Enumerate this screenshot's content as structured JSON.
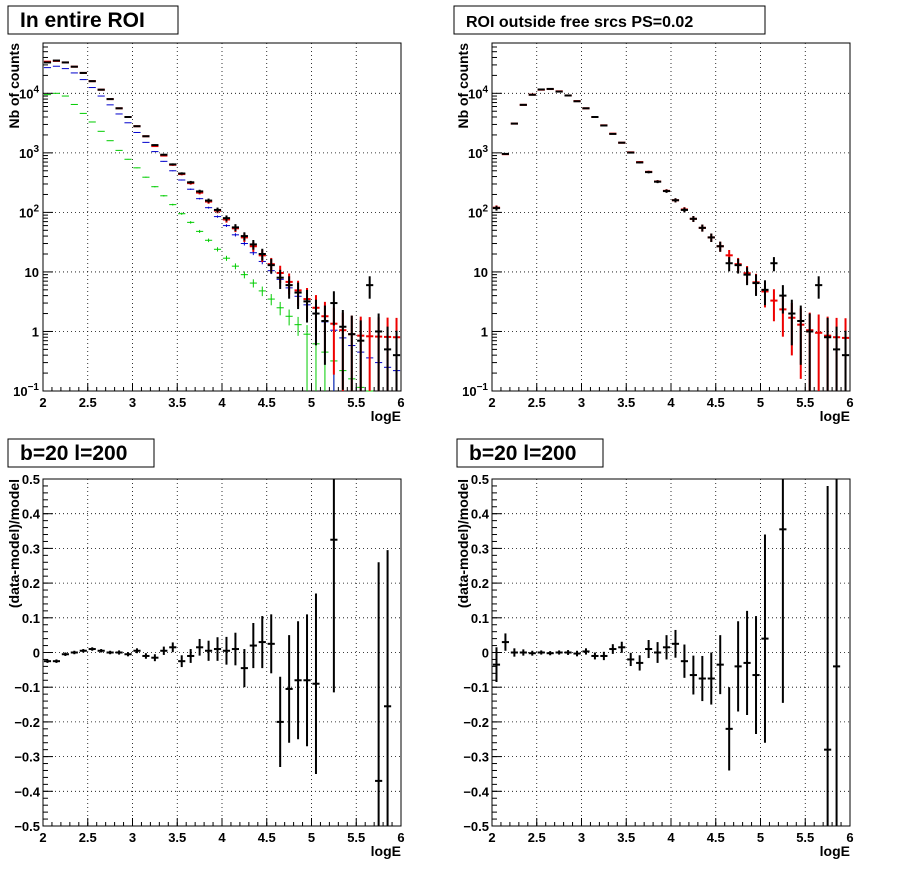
{
  "chart_data": [
    {
      "type": "scatter",
      "title": "In entire ROI",
      "xlabel": "logE",
      "ylabel": "Nb of counts",
      "yscale": "log",
      "xlim": [
        2,
        6
      ],
      "ylim": [
        0.1,
        70000
      ],
      "grid": true,
      "x_ticks": [
        "2",
        "2.5",
        "3",
        "3.5",
        "4",
        "4.5",
        "5",
        "5.5",
        "6"
      ],
      "y_ticks": [
        {
          "v": 0.1,
          "base": "10",
          "exp": "−1"
        },
        {
          "v": 1,
          "base": "1",
          "exp": ""
        },
        {
          "v": 10,
          "base": "10",
          "exp": ""
        },
        {
          "v": 100,
          "base": "10",
          "exp": "2"
        },
        {
          "v": 1000,
          "base": "10",
          "exp": "3"
        },
        {
          "v": 10000,
          "base": "10",
          "exp": "4"
        }
      ],
      "series": [
        {
          "color": "#00cc00",
          "style": "hist",
          "x": [
            2.05,
            2.15,
            2.25,
            2.35,
            2.45,
            2.55,
            2.65,
            2.75,
            2.85,
            2.95,
            3.05,
            3.15,
            3.25,
            3.35,
            3.45,
            3.55,
            3.65,
            3.75,
            3.85,
            3.95,
            4.05,
            4.15,
            4.25,
            4.35,
            4.45,
            4.55,
            4.65,
            4.75,
            4.85,
            4.95,
            5.05,
            5.15,
            5.25,
            5.35,
            5.45,
            5.55,
            5.65
          ],
          "y": [
            9500,
            10000,
            9000,
            6500,
            4600,
            3300,
            2300,
            1600,
            1100,
            780,
            560,
            390,
            270,
            190,
            135,
            95,
            68,
            48,
            34,
            24,
            17,
            12.5,
            9,
            6.5,
            4.8,
            3.5,
            2.5,
            1.8,
            1.3,
            0.9,
            0.62,
            0.45,
            0.32,
            0.22,
            0.16,
            0.115,
            0.1
          ]
        },
        {
          "color": "#0000cc",
          "style": "hist",
          "x": [
            2.05,
            2.15,
            2.25,
            2.35,
            2.45,
            2.55,
            2.65,
            2.75,
            2.85,
            2.95,
            3.05,
            3.15,
            3.25,
            3.35,
            3.45,
            3.55,
            3.65,
            3.75,
            3.85,
            3.95,
            4.05,
            4.15,
            4.25,
            4.35,
            4.45,
            4.55,
            4.65,
            4.75,
            4.85,
            4.95,
            5.05,
            5.15,
            5.25,
            5.35,
            5.45,
            5.55,
            5.65,
            5.75,
            5.85,
            5.95
          ],
          "y": [
            27000,
            28500,
            26000,
            22000,
            17000,
            12500,
            9000,
            6400,
            4500,
            3200,
            2200,
            1500,
            1050,
            720,
            500,
            350,
            245,
            170,
            120,
            85,
            60,
            42,
            30,
            21,
            15,
            10.5,
            7.5,
            5.4,
            3.9,
            2.8,
            2,
            1.45,
            1.05,
            0.78,
            0.58,
            0.45,
            0.36,
            0.3,
            0.25,
            0.22
          ]
        },
        {
          "color": "#ee0000",
          "style": "err",
          "x": [
            2.05,
            2.15,
            2.25,
            2.35,
            2.45,
            2.55,
            2.65,
            2.75,
            2.85,
            2.95,
            3.05,
            3.15,
            3.25,
            3.35,
            3.45,
            3.55,
            3.65,
            3.75,
            3.85,
            3.95,
            4.05,
            4.15,
            4.25,
            4.35,
            4.45,
            4.55,
            4.65,
            4.75,
            4.85,
            4.95,
            5.05,
            5.15,
            5.25,
            5.35,
            5.45,
            5.55,
            5.65,
            5.75,
            5.85,
            5.95
          ],
          "y": [
            34000,
            35000,
            33000,
            28000,
            22000,
            16000,
            11500,
            8000,
            5600,
            4000,
            2800,
            1900,
            1300,
            900,
            630,
            440,
            310,
            215,
            152,
            107,
            76,
            54,
            38,
            27,
            19,
            13.5,
            9.6,
            6.8,
            4.9,
            3.5,
            2.5,
            1.8,
            1.35,
            1.05,
            0.9,
            0.85,
            0.83,
            0.82,
            0.81,
            0.8
          ]
        },
        {
          "color": "#000000",
          "style": "err",
          "x": [
            2.05,
            2.15,
            2.25,
            2.35,
            2.45,
            2.55,
            2.65,
            2.75,
            2.85,
            2.95,
            3.05,
            3.15,
            3.25,
            3.35,
            3.45,
            3.55,
            3.65,
            3.75,
            3.85,
            3.95,
            4.05,
            4.15,
            4.25,
            4.35,
            4.45,
            4.55,
            4.65,
            4.75,
            4.85,
            4.95,
            5.05,
            5.15,
            5.25,
            5.35,
            5.45,
            5.55,
            5.65,
            5.75,
            5.85,
            5.95
          ],
          "y": [
            33000,
            35500,
            33000,
            28000,
            22000,
            16000,
            11500,
            8000,
            5600,
            4000,
            2800,
            1900,
            1350,
            930,
            640,
            450,
            320,
            225,
            158,
            110,
            80,
            56,
            40,
            29,
            20,
            13,
            8,
            6,
            4.5,
            3.2,
            2,
            1.5,
            3,
            1.2,
            0.9,
            0.7,
            6,
            1,
            0.5,
            0.4
          ]
        }
      ]
    },
    {
      "type": "scatter",
      "title": "ROI outside free srcs PS=0.02",
      "xlabel": "logE",
      "ylabel": "Nb of counts",
      "yscale": "log",
      "xlim": [
        2,
        6
      ],
      "ylim": [
        0.1,
        70000
      ],
      "grid": true,
      "x_ticks": [
        "2",
        "2.5",
        "3",
        "3.5",
        "4",
        "4.5",
        "5",
        "5.5",
        "6"
      ],
      "y_ticks": [
        {
          "v": 0.1,
          "base": "10",
          "exp": "−1"
        },
        {
          "v": 1,
          "base": "1",
          "exp": ""
        },
        {
          "v": 10,
          "base": "10",
          "exp": ""
        },
        {
          "v": 100,
          "base": "10",
          "exp": "2"
        },
        {
          "v": 1000,
          "base": "10",
          "exp": "3"
        },
        {
          "v": 10000,
          "base": "10",
          "exp": "4"
        }
      ],
      "series": [
        {
          "color": "#ee0000",
          "style": "err",
          "x": [
            2.05,
            2.15,
            2.25,
            2.35,
            2.45,
            2.55,
            2.65,
            2.75,
            2.85,
            2.95,
            3.05,
            3.15,
            3.25,
            3.35,
            3.45,
            3.55,
            3.65,
            3.75,
            3.85,
            3.95,
            4.05,
            4.15,
            4.25,
            4.35,
            4.45,
            4.55,
            4.65,
            4.75,
            4.85,
            4.95,
            5.05,
            5.15,
            5.25,
            5.35,
            5.45,
            5.55,
            5.65,
            5.75,
            5.85,
            5.95
          ],
          "y": [
            120,
            950,
            3100,
            6400,
            9500,
            11500,
            11800,
            10800,
            9200,
            7400,
            5600,
            4000,
            2900,
            2100,
            1480,
            1020,
            700,
            480,
            330,
            230,
            160,
            112,
            78,
            55,
            38,
            27,
            19,
            13.5,
            9.5,
            6.7,
            4.7,
            3.3,
            2.35,
            1.7,
            1.3,
            1.05,
            0.95,
            0.85,
            0.8,
            0.78
          ]
        },
        {
          "color": "#000000",
          "style": "err",
          "x": [
            2.05,
            2.15,
            2.25,
            2.35,
            2.45,
            2.55,
            2.65,
            2.75,
            2.85,
            2.95,
            3.05,
            3.15,
            3.25,
            3.35,
            3.45,
            3.55,
            3.65,
            3.75,
            3.85,
            3.95,
            4.05,
            4.15,
            4.25,
            4.35,
            4.45,
            4.55,
            4.65,
            4.75,
            4.85,
            4.95,
            5.05,
            5.15,
            5.25,
            5.35,
            5.45,
            5.55,
            5.65,
            5.75,
            5.85,
            5.95
          ],
          "y": [
            118,
            960,
            3100,
            6400,
            9450,
            11600,
            11850,
            10700,
            9200,
            7350,
            5600,
            4000,
            2880,
            2080,
            1480,
            1010,
            690,
            475,
            328,
            228,
            160,
            110,
            78,
            55,
            38,
            27,
            14,
            13,
            9,
            6.5,
            5,
            14,
            4,
            2,
            1.5,
            1,
            6,
            0.8,
            0.5,
            0.4
          ]
        }
      ]
    },
    {
      "type": "scatter",
      "title": "b=20 l=200",
      "xlabel": "logE",
      "ylabel": "(data-model)/model",
      "xlim": [
        2,
        6
      ],
      "ylim": [
        -0.5,
        0.5
      ],
      "grid": true,
      "x_ticks": [
        "2",
        "2.5",
        "3",
        "3.5",
        "4",
        "4.5",
        "5",
        "5.5",
        "6"
      ],
      "y_ticks": [
        "−0.5",
        "−0.4",
        "−0.3",
        "−0.2",
        "−0.1",
        "0",
        "0.1",
        "0.2",
        "0.3",
        "0.4",
        "0.5"
      ],
      "series": [
        {
          "color": "#000000",
          "style": "err",
          "x": [
            2.05,
            2.15,
            2.25,
            2.35,
            2.45,
            2.55,
            2.65,
            2.75,
            2.85,
            2.95,
            3.05,
            3.15,
            3.25,
            3.35,
            3.45,
            3.55,
            3.65,
            3.75,
            3.85,
            3.95,
            4.05,
            4.15,
            4.25,
            4.35,
            4.45,
            4.55,
            4.65,
            4.75,
            4.85,
            4.95,
            5.05,
            5.25,
            5.75,
            5.85
          ],
          "y": [
            -0.025,
            -0.025,
            -0.005,
            0.0,
            0.005,
            0.01,
            0.005,
            0.0,
            0.0,
            -0.005,
            0.005,
            -0.01,
            -0.015,
            0.005,
            0.015,
            -0.025,
            -0.01,
            0.015,
            0.005,
            0.01,
            0.005,
            0.01,
            -0.045,
            0.02,
            0.03,
            0.025,
            -0.2,
            -0.105,
            -0.08,
            -0.08,
            -0.09,
            0.325,
            -0.37,
            -0.155
          ],
          "err": [
            0.005,
            0.005,
            0.005,
            0.005,
            0.005,
            0.005,
            0.005,
            0.005,
            0.006,
            0.006,
            0.007,
            0.008,
            0.01,
            0.012,
            0.014,
            0.017,
            0.02,
            0.024,
            0.029,
            0.034,
            0.04,
            0.047,
            0.055,
            0.065,
            0.075,
            0.085,
            0.13,
            0.155,
            0.17,
            0.19,
            0.26,
            0.44,
            0.63,
            0.45
          ]
        }
      ]
    },
    {
      "type": "scatter",
      "title": "b=20 l=200",
      "xlabel": "logE",
      "ylabel": "(data-model)/model",
      "xlim": [
        2,
        6
      ],
      "ylim": [
        -0.5,
        0.5
      ],
      "grid": true,
      "x_ticks": [
        "2",
        "2.5",
        "3",
        "3.5",
        "4",
        "4.5",
        "5",
        "5.5",
        "6"
      ],
      "y_ticks": [
        "−0.5",
        "−0.4",
        "−0.3",
        "−0.2",
        "−0.1",
        "0",
        "0.1",
        "0.2",
        "0.3",
        "0.4",
        "0.5"
      ],
      "series": [
        {
          "color": "#000000",
          "style": "err",
          "x": [
            2.05,
            2.15,
            2.25,
            2.35,
            2.45,
            2.55,
            2.65,
            2.75,
            2.85,
            2.95,
            3.05,
            3.15,
            3.25,
            3.35,
            3.45,
            3.55,
            3.65,
            3.75,
            3.85,
            3.95,
            4.05,
            4.15,
            4.25,
            4.35,
            4.45,
            4.55,
            4.65,
            4.75,
            4.85,
            4.95,
            5.05,
            5.25,
            5.75,
            5.85
          ],
          "y": [
            -0.035,
            0.03,
            0.0,
            0.0,
            -0.002,
            0.0,
            -0.002,
            0.0,
            0.0,
            -0.003,
            0.003,
            -0.01,
            -0.01,
            0.01,
            0.015,
            -0.02,
            -0.03,
            0.01,
            0.0,
            0.015,
            0.025,
            -0.025,
            -0.065,
            -0.075,
            -0.075,
            -0.035,
            -0.22,
            -0.04,
            -0.03,
            -0.065,
            0.04,
            0.355,
            -0.28,
            -0.04
          ],
          "err": [
            0.05,
            0.025,
            0.012,
            0.009,
            0.007,
            0.006,
            0.006,
            0.006,
            0.007,
            0.008,
            0.009,
            0.01,
            0.012,
            0.014,
            0.016,
            0.019,
            0.022,
            0.026,
            0.03,
            0.035,
            0.04,
            0.048,
            0.056,
            0.065,
            0.075,
            0.085,
            0.12,
            0.13,
            0.15,
            0.17,
            0.3,
            0.5,
            0.76,
            0.55
          ]
        }
      ]
    }
  ]
}
